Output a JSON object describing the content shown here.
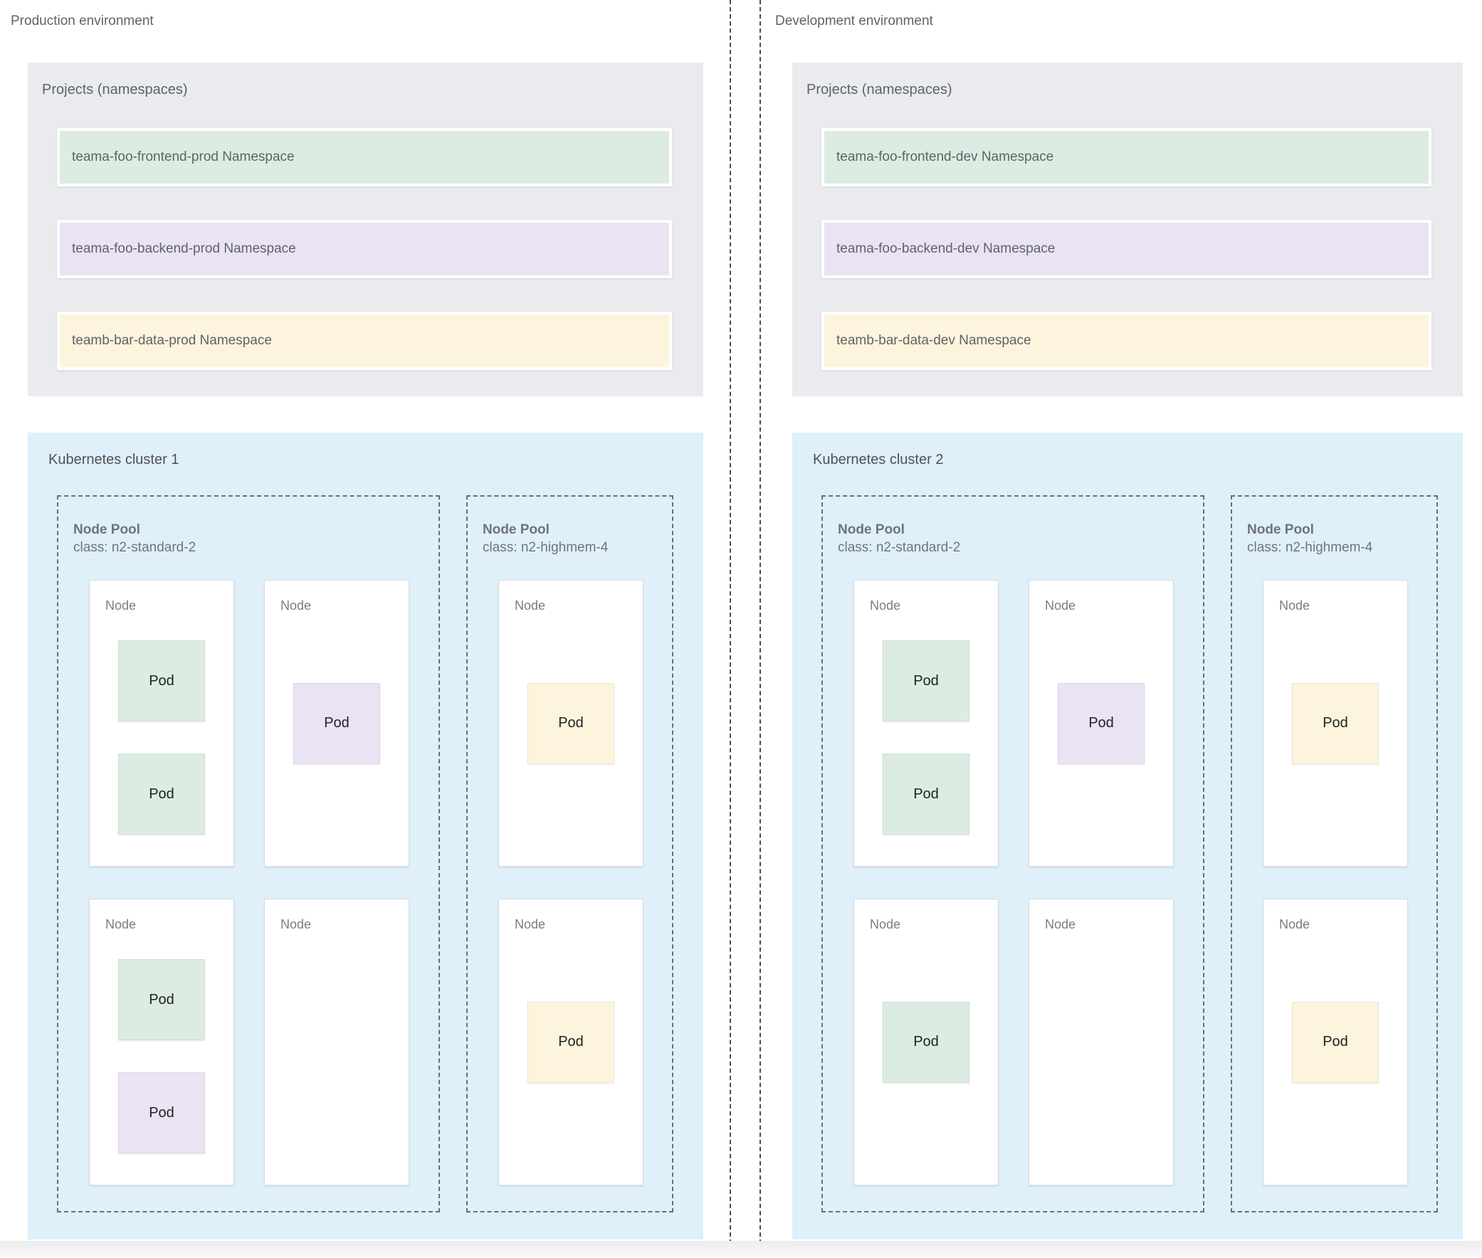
{
  "colors": {
    "green": "#dcece2",
    "purple": "#eae3f4",
    "yellow": "#fcf4dc",
    "gray_panel": "#e9ebee",
    "blue_panel": "#dff0fa"
  },
  "environments": [
    {
      "label": "Production environment",
      "projects": {
        "title": "Projects (namespaces)",
        "namespaces": [
          {
            "label": "teama-foo-frontend-prod Namespace",
            "color": "green"
          },
          {
            "label": "teama-foo-backend-prod Namespace",
            "color": "purple"
          },
          {
            "label": "teamb-bar-data-prod Namespace",
            "color": "yellow"
          }
        ]
      },
      "cluster": {
        "title": "Kubernetes cluster 1",
        "node_pools": [
          {
            "name": "Node Pool",
            "class_line": "class: n2-standard-2",
            "type": "standard",
            "nodes": [
              {
                "label": "Node",
                "pods": [
                  {
                    "label": "Pod",
                    "color": "green"
                  },
                  {
                    "label": "Pod",
                    "color": "green"
                  }
                ]
              },
              {
                "label": "Node",
                "pods": [
                  {
                    "label": "Pod",
                    "color": "purple"
                  }
                ]
              },
              {
                "label": "Node",
                "pods": [
                  {
                    "label": "Pod",
                    "color": "green"
                  },
                  {
                    "label": "Pod",
                    "color": "purple"
                  }
                ]
              },
              {
                "label": "Node",
                "pods": []
              }
            ]
          },
          {
            "name": "Node Pool",
            "class_line": "class: n2-highmem-4",
            "type": "highmem",
            "nodes": [
              {
                "label": "Node",
                "pods": [
                  {
                    "label": "Pod",
                    "color": "yellow"
                  }
                ]
              },
              {
                "label": "Node",
                "pods": [
                  {
                    "label": "Pod",
                    "color": "yellow"
                  }
                ]
              }
            ]
          }
        ]
      }
    },
    {
      "label": "Development environment",
      "projects": {
        "title": "Projects (namespaces)",
        "namespaces": [
          {
            "label": "teama-foo-frontend-dev Namespace",
            "color": "green"
          },
          {
            "label": "teama-foo-backend-dev Namespace",
            "color": "purple"
          },
          {
            "label": "teamb-bar-data-dev Namespace",
            "color": "yellow"
          }
        ]
      },
      "cluster": {
        "title": "Kubernetes cluster 2",
        "node_pools": [
          {
            "name": "Node Pool",
            "class_line": "class: n2-standard-2",
            "type": "standard",
            "nodes": [
              {
                "label": "Node",
                "pods": [
                  {
                    "label": "Pod",
                    "color": "green"
                  },
                  {
                    "label": "Pod",
                    "color": "green"
                  }
                ]
              },
              {
                "label": "Node",
                "pods": [
                  {
                    "label": "Pod",
                    "color": "purple"
                  }
                ]
              },
              {
                "label": "Node",
                "pods": [
                  {
                    "label": "Pod",
                    "color": "green"
                  }
                ]
              },
              {
                "label": "Node",
                "pods": []
              }
            ]
          },
          {
            "name": "Node Pool",
            "class_line": "class: n2-highmem-4",
            "type": "highmem",
            "nodes": [
              {
                "label": "Node",
                "pods": [
                  {
                    "label": "Pod",
                    "color": "yellow"
                  }
                ]
              },
              {
                "label": "Node",
                "pods": [
                  {
                    "label": "Pod",
                    "color": "yellow"
                  }
                ]
              }
            ]
          }
        ]
      }
    }
  ]
}
